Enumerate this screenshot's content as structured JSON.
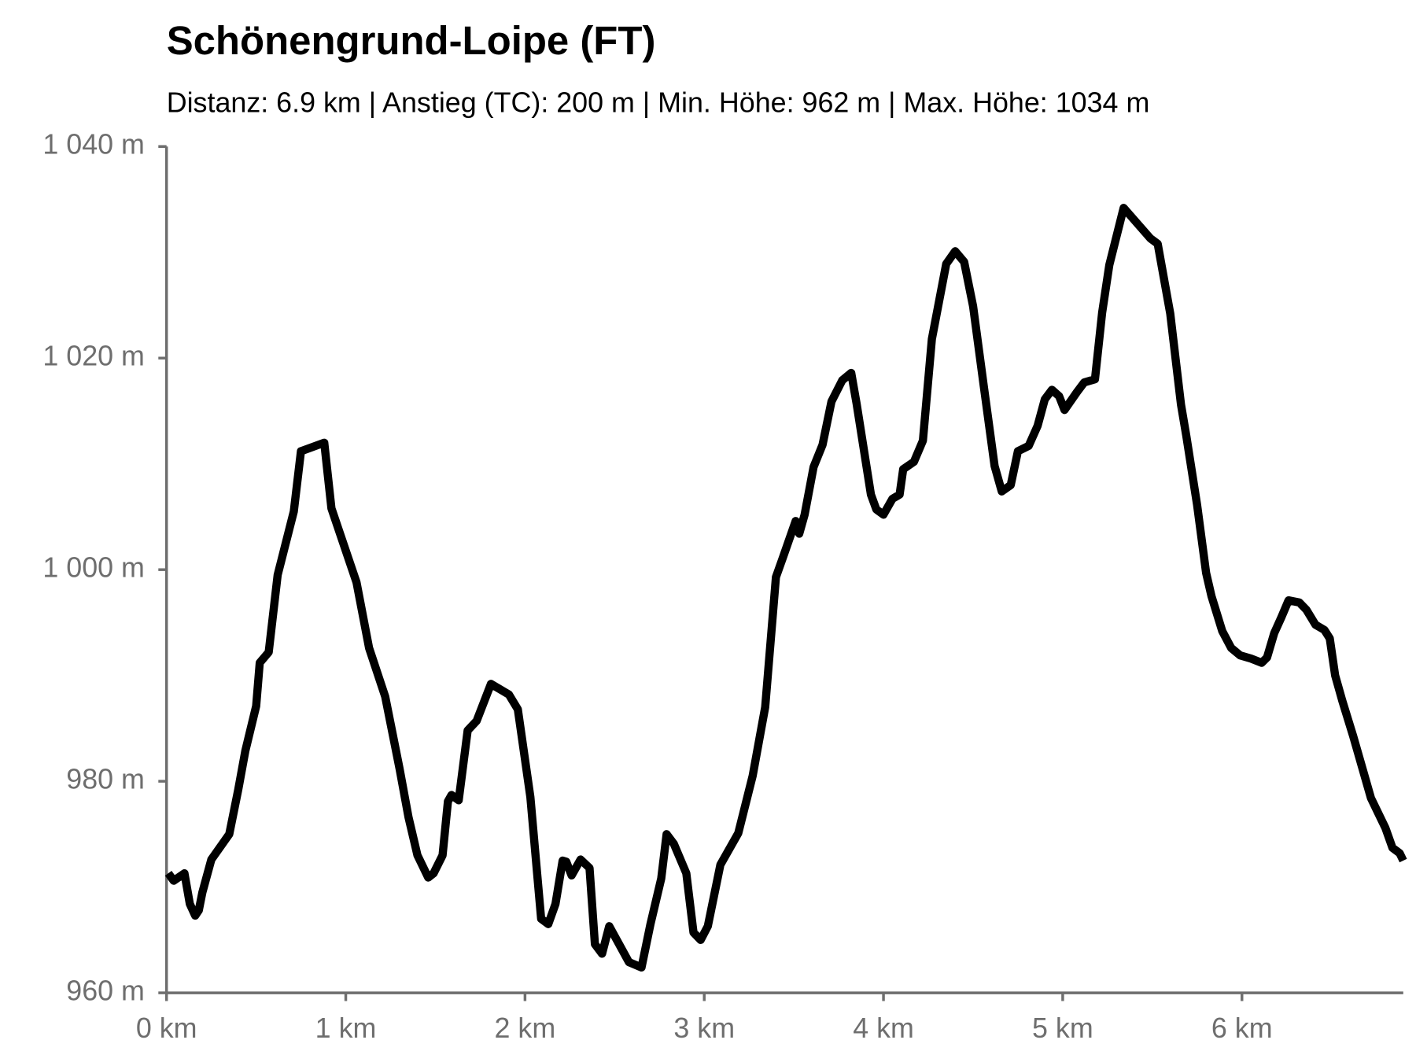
{
  "chart_data": {
    "type": "line",
    "title": "Schönengrund-Loipe (FT)",
    "subtitle": "Distanz: 6.9 km | Anstieg (TC): 200 m | Min. Höhe: 962 m | Max. Höhe: 1034 m",
    "x": [
      0.01,
      0.04,
      0.1,
      0.13,
      0.16,
      0.18,
      0.2,
      0.25,
      0.35,
      0.4,
      0.44,
      0.5,
      0.52,
      0.57,
      0.62,
      0.71,
      0.75,
      0.88,
      0.92,
      1.06,
      1.13,
      1.22,
      1.3,
      1.35,
      1.4,
      1.46,
      1.49,
      1.54,
      1.57,
      1.59,
      1.63,
      1.68,
      1.73,
      1.81,
      1.91,
      1.96,
      2.03,
      2.09,
      2.13,
      2.17,
      2.21,
      2.23,
      2.26,
      2.31,
      2.36,
      2.39,
      2.43,
      2.47,
      2.58,
      2.65,
      2.7,
      2.76,
      2.79,
      2.83,
      2.9,
      2.94,
      2.98,
      3.02,
      3.09,
      3.19,
      3.27,
      3.34,
      3.4,
      3.44,
      3.51,
      3.53,
      3.56,
      3.61,
      3.66,
      3.71,
      3.77,
      3.82,
      3.85,
      3.93,
      3.96,
      4.0,
      4.05,
      4.09,
      4.11,
      4.17,
      4.22,
      4.27,
      4.35,
      4.4,
      4.45,
      4.5,
      4.56,
      4.62,
      4.66,
      4.71,
      4.75,
      4.81,
      4.86,
      4.9,
      4.94,
      4.98,
      5.01,
      5.08,
      5.12,
      5.18,
      5.22,
      5.26,
      5.34,
      5.49,
      5.53,
      5.6,
      5.66,
      5.69,
      5.75,
      5.8,
      5.83,
      5.89,
      5.94,
      5.99,
      6.05,
      6.11,
      6.14,
      6.18,
      6.22,
      6.26,
      6.32,
      6.36,
      6.41,
      6.46,
      6.49,
      6.52,
      6.56,
      6.62,
      6.72,
      6.8,
      6.84,
      6.88,
      6.9
    ],
    "series": [
      {
        "color": "#000000",
        "values": [
          971.3,
          970.6,
          971.3,
          968.4,
          967.3,
          967.8,
          969.5,
          972.6,
          975.0,
          979.2,
          982.9,
          987.1,
          991.2,
          992.2,
          999.5,
          1005.5,
          1011.2,
          1012.0,
          1005.8,
          998.8,
          992.6,
          988.0,
          981.2,
          976.6,
          973.0,
          970.9,
          971.3,
          973.0,
          978.1,
          978.7,
          978.2,
          984.8,
          985.7,
          989.2,
          988.2,
          986.8,
          978.5,
          967.0,
          966.5,
          968.4,
          972.5,
          972.4,
          971.1,
          972.6,
          971.8,
          964.6,
          963.7,
          966.3,
          962.9,
          962.4,
          966.5,
          970.8,
          975.0,
          974.1,
          971.3,
          965.7,
          965.0,
          966.3,
          972.1,
          975.1,
          980.5,
          987.0,
          999.3,
          1001.2,
          1004.6,
          1003.4,
          1005.2,
          1009.7,
          1011.8,
          1015.9,
          1017.9,
          1018.6,
          1015.7,
          1007.1,
          1005.7,
          1005.2,
          1006.7,
          1007.1,
          1009.5,
          1010.2,
          1012.2,
          1021.8,
          1028.9,
          1030.1,
          1029.1,
          1024.9,
          1017.3,
          1009.8,
          1007.4,
          1008.0,
          1011.2,
          1011.7,
          1013.6,
          1016.1,
          1017.0,
          1016.4,
          1015.1,
          1016.8,
          1017.7,
          1018.0,
          1024.3,
          1028.8,
          1034.2,
          1031.3,
          1030.8,
          1024.2,
          1015.6,
          1012.6,
          1006.1,
          999.7,
          997.5,
          994.2,
          992.6,
          991.9,
          991.6,
          991.2,
          991.7,
          994.0,
          995.5,
          997.1,
          996.9,
          996.2,
          994.8,
          994.3,
          993.5,
          990.0,
          987.6,
          984.3,
          978.4,
          975.6,
          973.7,
          973.2,
          972.5
        ]
      }
    ],
    "xlim": [
      0,
      6.9
    ],
    "ylim": [
      960,
      1040
    ],
    "xticks": [
      {
        "value": 0,
        "label": "0 km"
      },
      {
        "value": 1,
        "label": "1 km"
      },
      {
        "value": 2,
        "label": "2 km"
      },
      {
        "value": 3,
        "label": "3 km"
      },
      {
        "value": 4,
        "label": "4 km"
      },
      {
        "value": 5,
        "label": "5 km"
      },
      {
        "value": 6,
        "label": "6 km"
      }
    ],
    "yticks": [
      {
        "value": 960,
        "label": "960 m"
      },
      {
        "value": 980,
        "label": "980 m"
      },
      {
        "value": 1000,
        "label": "1 000 m"
      },
      {
        "value": 1020,
        "label": "1 020 m"
      },
      {
        "value": 1040,
        "label": "1 040 m"
      }
    ],
    "grid": false
  }
}
